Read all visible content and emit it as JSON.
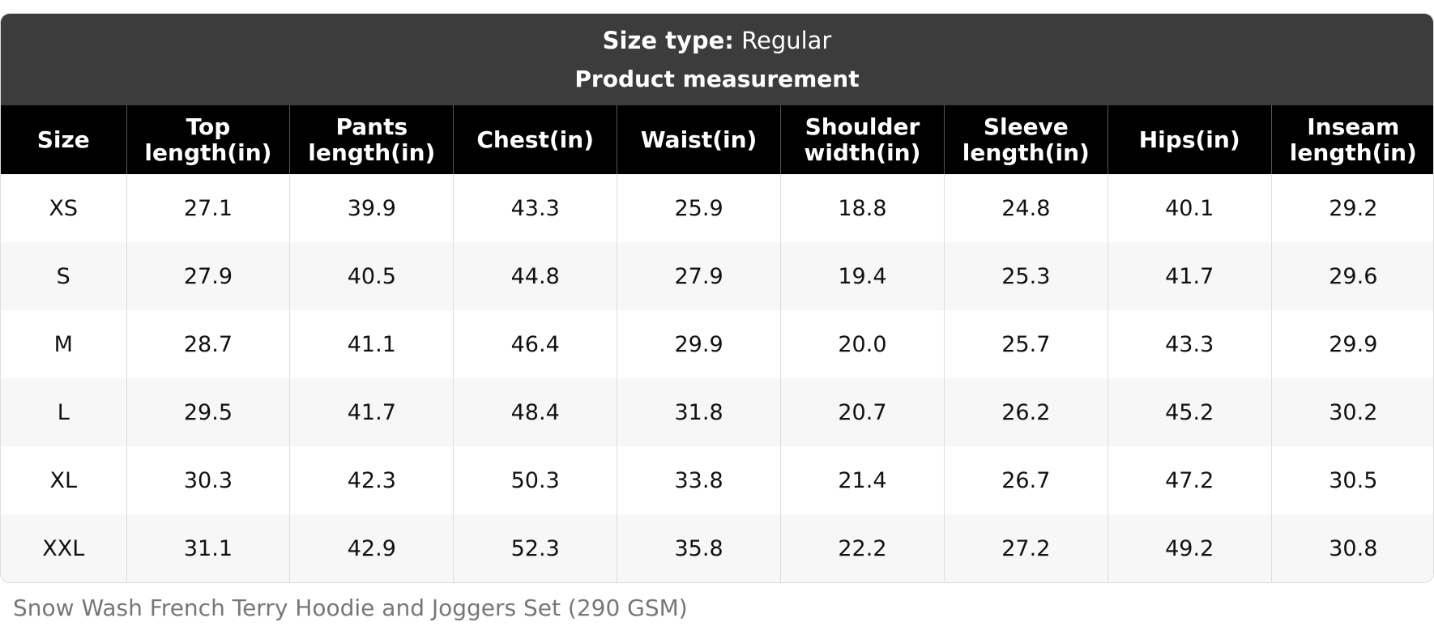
{
  "header": {
    "size_type_label": "Size type:",
    "size_type_value": "Regular",
    "subtitle": "Product measurement"
  },
  "table": {
    "columns": [
      "Size",
      "Top length(in)",
      "Pants length(in)",
      "Chest(in)",
      "Waist(in)",
      "Shoulder width(in)",
      "Sleeve length(in)",
      "Hips(in)",
      "Inseam length(in)"
    ],
    "rows": [
      [
        "XS",
        "27.1",
        "39.9",
        "43.3",
        "25.9",
        "18.8",
        "24.8",
        "40.1",
        "29.2"
      ],
      [
        "S",
        "27.9",
        "40.5",
        "44.8",
        "27.9",
        "19.4",
        "25.3",
        "41.7",
        "29.6"
      ],
      [
        "M",
        "28.7",
        "41.1",
        "46.4",
        "29.9",
        "20.0",
        "25.7",
        "43.3",
        "29.9"
      ],
      [
        "L",
        "29.5",
        "41.7",
        "48.4",
        "31.8",
        "20.7",
        "26.2",
        "45.2",
        "30.2"
      ],
      [
        "XL",
        "30.3",
        "42.3",
        "50.3",
        "33.8",
        "21.4",
        "26.7",
        "47.2",
        "30.5"
      ],
      [
        "XXL",
        "31.1",
        "42.9",
        "52.3",
        "35.8",
        "22.2",
        "27.2",
        "49.2",
        "30.8"
      ]
    ]
  },
  "caption": "Snow Wash French Terry Hoodie and Joggers Set (290 GSM)"
}
